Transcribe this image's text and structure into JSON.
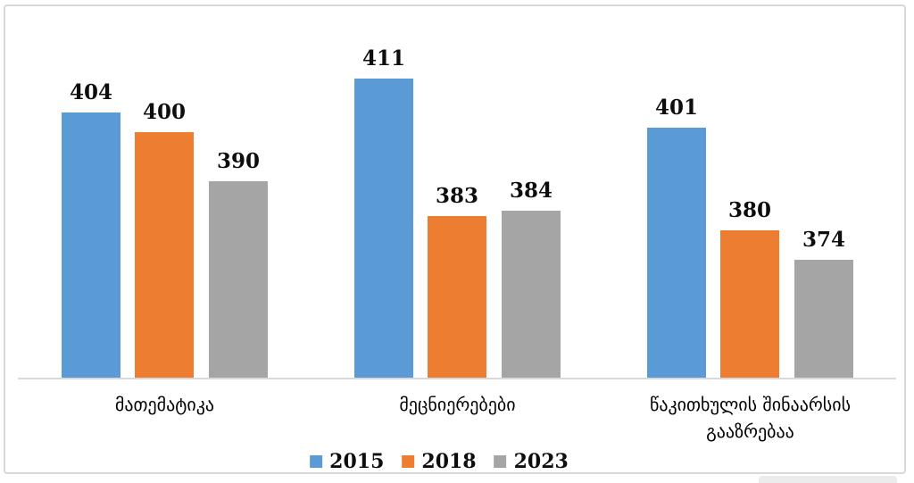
{
  "chart_data": {
    "type": "bar",
    "categories": [
      "მათემატიკა",
      "მეცნიერებები",
      "წაკითხულის შინაარსის გააზრებაა"
    ],
    "series": [
      {
        "name": "2015",
        "color": "#5B9BD5",
        "values": [
          404,
          411,
          401
        ]
      },
      {
        "name": "2018",
        "color": "#ED7D31",
        "values": [
          400,
          383,
          380
        ]
      },
      {
        "name": "2023",
        "color": "#A5A5A5",
        "values": [
          390,
          384,
          374
        ]
      }
    ],
    "title": "",
    "xlabel": "",
    "ylabel": "",
    "ylim": [
      350,
      421
    ],
    "grid": false,
    "legend_position": "bottom",
    "value_labels_shown": true,
    "axis_line_color": "#D9D9D9",
    "frame_border_color": "#D8D8D8",
    "text_color": "#000000"
  }
}
